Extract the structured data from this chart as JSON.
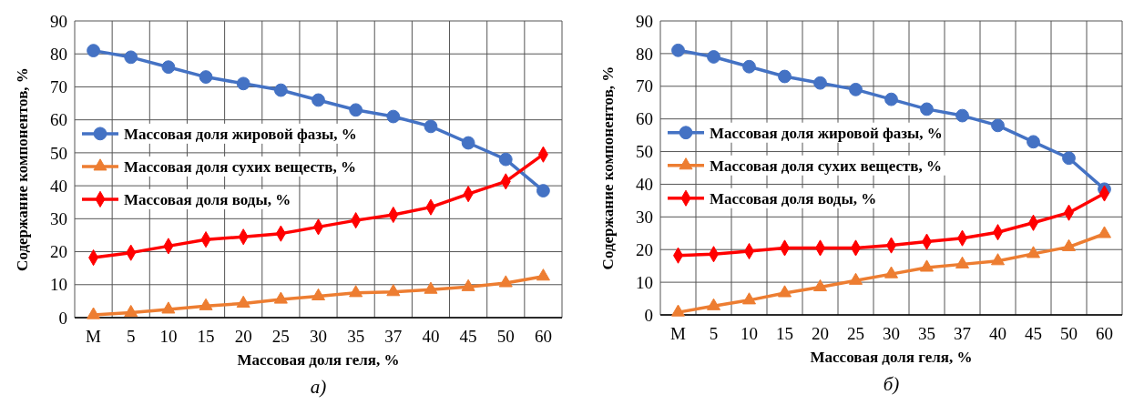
{
  "chart_data": [
    {
      "type": "line",
      "categories": [
        "М",
        "5",
        "10",
        "15",
        "20",
        "25",
        "30",
        "35",
        "37",
        "40",
        "45",
        "50",
        "60"
      ],
      "xlabel": "Массовая доля геля, %",
      "ylabel": "Содержание компонентов, %",
      "ylim": [
        0,
        90
      ],
      "yticks": [
        0,
        10,
        20,
        30,
        40,
        50,
        60,
        70,
        80,
        90
      ],
      "grid": true,
      "legend": "left",
      "annotations": [
        "а)"
      ],
      "series": [
        {
          "name": "Массовая доля жировой фазы, %",
          "color": "#4472c4",
          "marker": "circle",
          "values": [
            81,
            79,
            76,
            73,
            71,
            69,
            66,
            63,
            61,
            58,
            53,
            48,
            38.5
          ]
        },
        {
          "name": "Массовая доля сухих веществ, %",
          "color": "#ed7d31",
          "marker": "triangle",
          "values": [
            0.8,
            1.5,
            2.5,
            3.5,
            4.3,
            5.5,
            6.5,
            7.5,
            7.8,
            8.5,
            9.3,
            10.5,
            12.5
          ]
        },
        {
          "name": "Массовая доля воды, %",
          "color": "#ff0000",
          "marker": "diamond",
          "values": [
            18.2,
            19.7,
            21.7,
            23.7,
            24.5,
            25.5,
            27.5,
            29.5,
            31.2,
            33.5,
            37.5,
            41.3,
            49.5
          ]
        }
      ]
    },
    {
      "type": "line",
      "categories": [
        "М",
        "5",
        "10",
        "15",
        "20",
        "25",
        "30",
        "35",
        "37",
        "40",
        "45",
        "50",
        "60"
      ],
      "xlabel": "Массовая доля геля, %",
      "ylabel": "Содержание компонентов, %",
      "ylim": [
        0,
        90
      ],
      "yticks": [
        0,
        10,
        20,
        30,
        40,
        50,
        60,
        70,
        80,
        90
      ],
      "grid": true,
      "legend": "left",
      "annotations": [
        "б)"
      ],
      "series": [
        {
          "name": "Массовая доля жировой фазы, %",
          "color": "#4472c4",
          "marker": "circle",
          "values": [
            81,
            79,
            76,
            73,
            71,
            69,
            66,
            63,
            61,
            58,
            53,
            48,
            38.5
          ]
        },
        {
          "name": "Массовая доля сухих веществ, %",
          "color": "#ed7d31",
          "marker": "triangle",
          "values": [
            0.8,
            2.7,
            4.5,
            6.7,
            8.5,
            10.5,
            12.5,
            14.5,
            15.5,
            16.5,
            18.7,
            20.8,
            24.8
          ]
        },
        {
          "name": "Массовая доля воды, %",
          "color": "#ff0000",
          "marker": "diamond",
          "values": [
            18.2,
            18.6,
            19.5,
            20.5,
            20.5,
            20.5,
            21.3,
            22.4,
            23.5,
            25.3,
            28.2,
            31.3,
            37.2
          ]
        }
      ]
    }
  ]
}
